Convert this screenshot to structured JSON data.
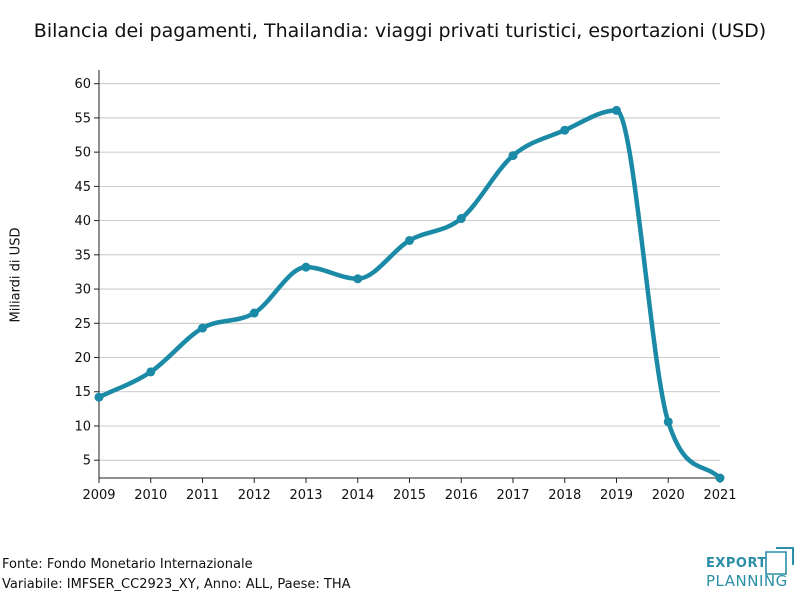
{
  "title": "Bilancia dei pagamenti, Thailandia: viaggi privati turistici, esportazioni (USD)",
  "footer": {
    "source": "Fonte: Fondo Monetario Internazionale",
    "variable": "Variabile: IMFSER_CC2923_XY, Anno: ALL, Paese: THA"
  },
  "logo": {
    "line1": "EXPORT",
    "line2": "PLANNING"
  },
  "colors": {
    "line": "#1a8aa6",
    "grid": "#bbbbbb",
    "axis": "#222222",
    "logo": "#2a8fa6"
  },
  "chart_data": {
    "type": "line",
    "title": "Bilancia dei pagamenti, Thailandia: viaggi privati turistici, esportazioni (USD)",
    "xlabel": "",
    "ylabel": "Miliardi di USD",
    "x": [
      2009,
      2010,
      2011,
      2012,
      2013,
      2014,
      2015,
      2016,
      2017,
      2018,
      2019,
      2020,
      2021
    ],
    "series": [
      {
        "values": [
          14.2,
          17.9,
          24.3,
          26.5,
          33.2,
          31.5,
          37.1,
          40.3,
          49.5,
          53.2,
          56.1,
          10.6,
          2.4
        ]
      }
    ],
    "xlim": [
      2009,
      2021
    ],
    "ylim": [
      2.4,
      62
    ],
    "yticks": [
      5,
      10,
      15,
      20,
      25,
      30,
      35,
      40,
      45,
      50,
      55,
      60
    ],
    "grid": true,
    "legend": "none"
  }
}
